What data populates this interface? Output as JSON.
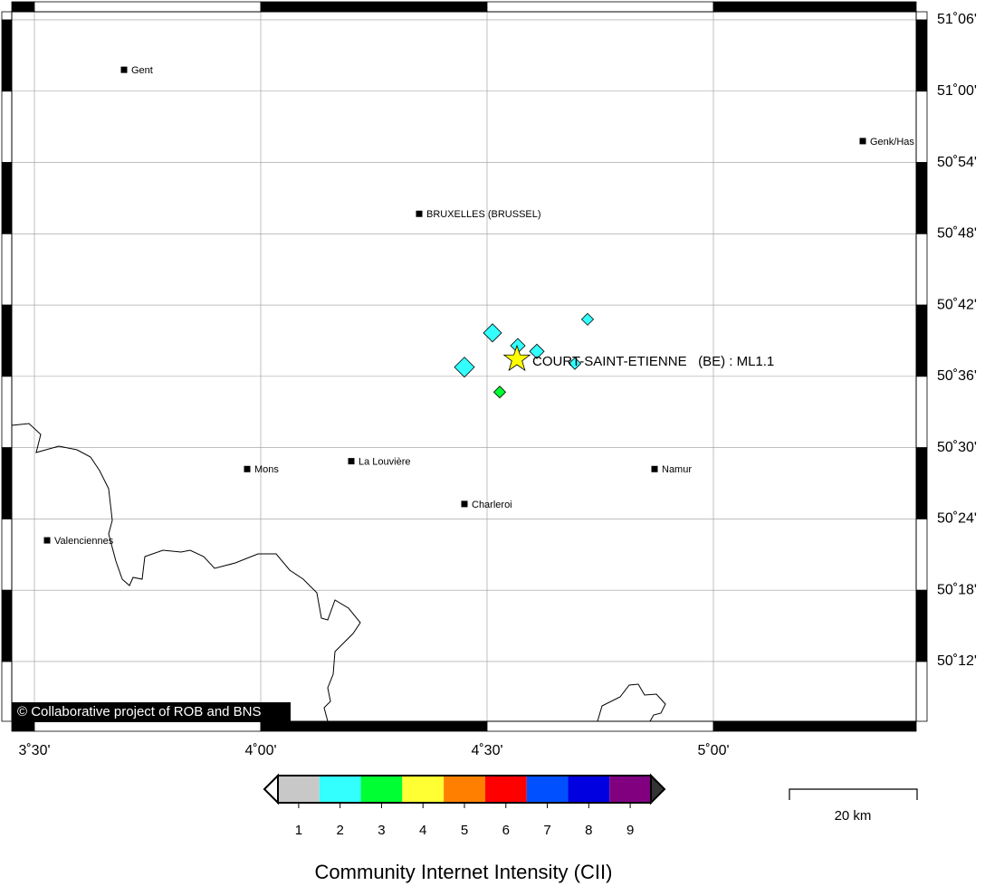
{
  "map": {
    "lonlim": [
      3.45,
      5.448
    ],
    "latlim": [
      50.1162,
      51.1114
    ],
    "lonticks": [
      {
        "value": 3.5,
        "label": "3˚30'"
      },
      {
        "value": 4.0,
        "label": "4˚00'"
      },
      {
        "value": 4.5,
        "label": "4˚30'"
      },
      {
        "value": 5.0,
        "label": "5˚00'"
      }
    ],
    "latticks": [
      {
        "value": 51.1,
        "label": "51˚06'"
      },
      {
        "value": 51.0,
        "label": "51˚00'"
      },
      {
        "value": 50.9,
        "label": "50˚54'"
      },
      {
        "value": 50.8,
        "label": "50˚48'"
      },
      {
        "value": 50.7,
        "label": "50˚42'"
      },
      {
        "value": 50.6,
        "label": "50˚36'"
      },
      {
        "value": 50.5,
        "label": "50˚30'"
      },
      {
        "value": 50.4,
        "label": "50˚24'"
      },
      {
        "value": 50.3,
        "label": "50˚18'"
      },
      {
        "value": 50.2,
        "label": "50˚12'"
      }
    ],
    "places": [
      {
        "name": "Gent",
        "lon": 3.698,
        "lat": 51.03
      },
      {
        "name": "BRUXELLES (BRUSSEL)",
        "lon": 4.35,
        "lat": 50.828
      },
      {
        "name": "Genk/Has",
        "lon": 5.33,
        "lat": 50.93
      },
      {
        "name": "Mons",
        "lon": 3.97,
        "lat": 50.47
      },
      {
        "name": "La Louvière",
        "lon": 4.2,
        "lat": 50.481
      },
      {
        "name": "Charleroi",
        "lon": 4.45,
        "lat": 50.421
      },
      {
        "name": "Namur",
        "lon": 4.87,
        "lat": 50.47
      },
      {
        "name": "Valenciennes",
        "lon": 3.528,
        "lat": 50.37
      }
    ],
    "reports": [
      {
        "lon": 4.512,
        "lat": 50.661,
        "intensity": 2
      },
      {
        "lon": 4.45,
        "lat": 50.613,
        "intensity": 2
      },
      {
        "lon": 4.568,
        "lat": 50.643,
        "intensity": 2
      },
      {
        "lon": 4.61,
        "lat": 50.635,
        "intensity": 2
      },
      {
        "lon": 4.722,
        "lat": 50.68,
        "intensity": 2
      },
      {
        "lon": 4.694,
        "lat": 50.618,
        "intensity": 2
      },
      {
        "lon": 4.528,
        "lat": 50.578,
        "intensity": 3
      }
    ],
    "epicenter": {
      "label": "COURT-SAINT-ETIENNE   (BE) : ML1.1",
      "lon": 4.566,
      "lat": 50.624
    },
    "credit": "© Collaborative project of ROB and BNS"
  },
  "legend": {
    "title": "Community Internet Intensity (CII)",
    "classes": [
      {
        "value": 1,
        "color": "#c8c8c8"
      },
      {
        "value": 2,
        "color": "#33ffff"
      },
      {
        "value": 3,
        "color": "#00ff33"
      },
      {
        "value": 4,
        "color": "#ffff33"
      },
      {
        "value": 5,
        "color": "#ff8000"
      },
      {
        "value": 6,
        "color": "#ff0000"
      },
      {
        "value": 7,
        "color": "#0050ff"
      },
      {
        "value": 8,
        "color": "#0000e0"
      },
      {
        "value": 9,
        "color": "#800080"
      }
    ]
  },
  "scale_bar": {
    "label": "20 km"
  }
}
